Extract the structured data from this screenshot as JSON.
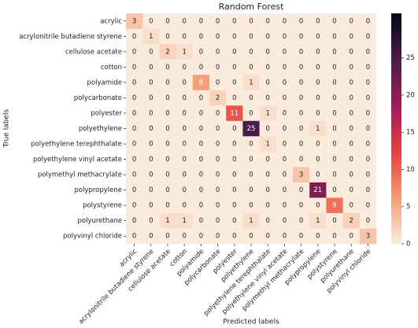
{
  "chart_data": {
    "type": "heatmap",
    "title": "Random Forest",
    "xlabel": "Predicted labels",
    "ylabel": "True labels",
    "categories": [
      "acrylic",
      "acrylonitrile butadiene styrene",
      "cellulose acetate",
      "cotton",
      "polyamide",
      "polycarbonate",
      "polyester",
      "polyethylene",
      "polyethylene terephthalate",
      "polyethylene vinyl acetate",
      "polymethyl methacrylate",
      "polypropylene",
      "polystyrene",
      "polyurethane",
      "polyvinyl chloride"
    ],
    "values": [
      [
        3,
        0,
        0,
        0,
        0,
        0,
        0,
        0,
        0,
        0,
        0,
        0,
        0,
        0,
        0
      ],
      [
        0,
        1,
        0,
        0,
        0,
        0,
        0,
        0,
        0,
        0,
        0,
        0,
        0,
        0,
        0
      ],
      [
        0,
        0,
        2,
        1,
        0,
        0,
        0,
        0,
        0,
        0,
        0,
        0,
        0,
        0,
        0
      ],
      [
        0,
        0,
        0,
        0,
        0,
        0,
        0,
        0,
        0,
        0,
        0,
        0,
        0,
        0,
        0
      ],
      [
        0,
        0,
        0,
        0,
        6,
        0,
        0,
        1,
        0,
        0,
        0,
        0,
        0,
        0,
        0
      ],
      [
        0,
        0,
        0,
        0,
        0,
        2,
        0,
        0,
        0,
        0,
        0,
        0,
        0,
        0,
        0
      ],
      [
        0,
        0,
        0,
        0,
        0,
        0,
        11,
        0,
        1,
        0,
        0,
        0,
        0,
        0,
        0
      ],
      [
        0,
        0,
        0,
        0,
        0,
        0,
        0,
        25,
        0,
        0,
        0,
        1,
        0,
        0,
        0
      ],
      [
        0,
        0,
        0,
        0,
        0,
        0,
        0,
        0,
        1,
        0,
        0,
        0,
        0,
        0,
        0
      ],
      [
        0,
        0,
        0,
        0,
        0,
        0,
        0,
        0,
        0,
        0,
        0,
        0,
        0,
        0,
        0
      ],
      [
        0,
        0,
        0,
        0,
        0,
        0,
        0,
        0,
        0,
        0,
        3,
        0,
        0,
        0,
        0
      ],
      [
        0,
        0,
        0,
        0,
        0,
        0,
        0,
        0,
        0,
        0,
        0,
        21,
        0,
        0,
        0
      ],
      [
        0,
        0,
        0,
        0,
        0,
        0,
        0,
        0,
        0,
        0,
        0,
        0,
        9,
        0,
        0
      ],
      [
        0,
        0,
        1,
        1,
        0,
        0,
        0,
        1,
        0,
        0,
        0,
        1,
        0,
        2,
        0
      ],
      [
        0,
        0,
        0,
        0,
        0,
        0,
        0,
        0,
        0,
        0,
        0,
        0,
        0,
        0,
        3
      ]
    ],
    "colormap": [
      "#faebdd",
      "#f69c73",
      "#e83f3f",
      "#a11a5b",
      "#4c1d4b",
      "#03051a"
    ],
    "zlim": [
      0,
      31
    ],
    "zticks": [
      0,
      5,
      10,
      15,
      20,
      25
    ]
  }
}
